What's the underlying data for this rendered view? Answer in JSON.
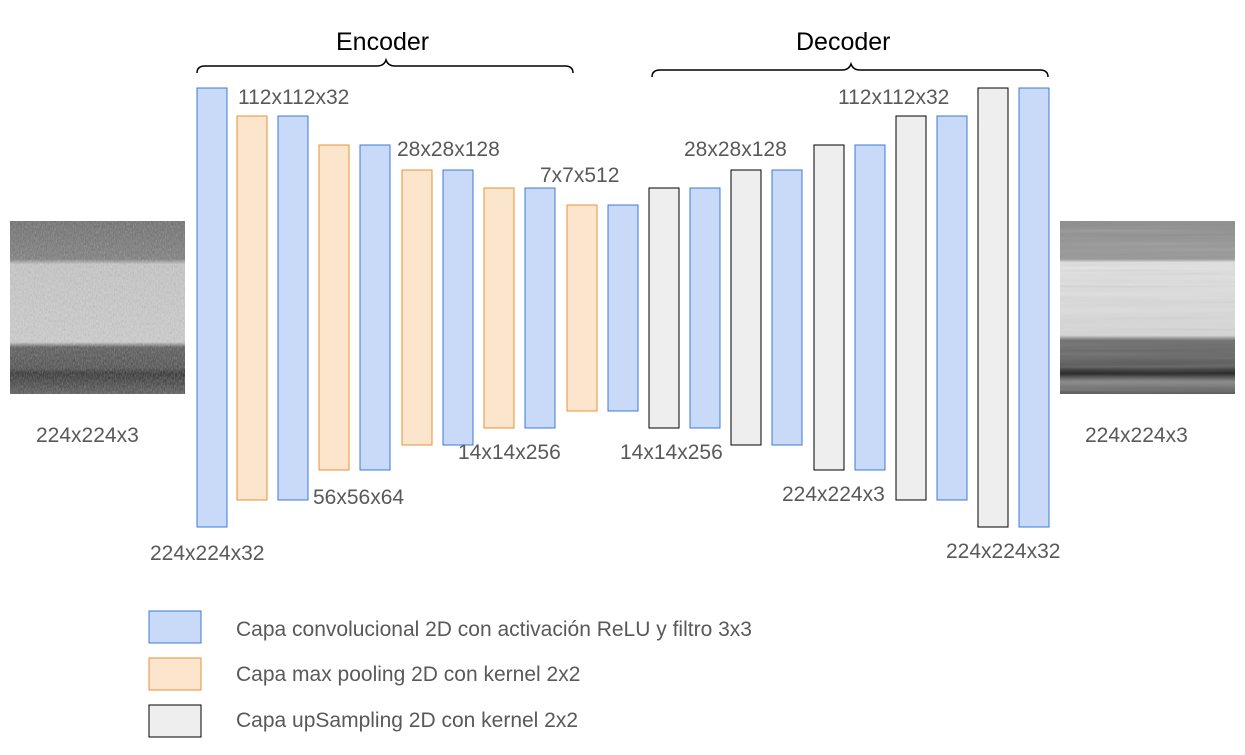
{
  "colors": {
    "conv_fill": "#c9daf8",
    "conv_stroke": "#3c78d8",
    "pool_fill": "#fce5cd",
    "pool_stroke": "#e69138",
    "up_fill": "#eeeeee",
    "up_stroke": "#000000"
  },
  "sections": {
    "encoder": "Encoder",
    "decoder": "Decoder"
  },
  "images": {
    "input_label": "224x224x3",
    "output_label": "224x224x3"
  },
  "dimension_labels": {
    "enc_224x224x32": "224x224x32",
    "enc_112x112x32": "112x112x32",
    "enc_56x56x64": "56x56x64",
    "enc_28x28x128": "28x28x128",
    "enc_14x14x256": "14x14x256",
    "bottleneck_7x7x512": "7x7x512",
    "dec_14x14x256": "14x14x256",
    "dec_28x28x128": "28x28x128",
    "dec_224x224x3": "224x224x3",
    "dec_112x112x32": "112x112x32",
    "dec_224x224x32": "224x224x32"
  },
  "layers": [
    {
      "type": "conv"
    },
    {
      "type": "pool"
    },
    {
      "type": "conv"
    },
    {
      "type": "pool"
    },
    {
      "type": "conv"
    },
    {
      "type": "pool"
    },
    {
      "type": "conv"
    },
    {
      "type": "pool"
    },
    {
      "type": "conv"
    },
    {
      "type": "pool"
    },
    {
      "type": "conv"
    },
    {
      "type": "up"
    },
    {
      "type": "conv"
    },
    {
      "type": "up"
    },
    {
      "type": "conv"
    },
    {
      "type": "up"
    },
    {
      "type": "conv"
    },
    {
      "type": "up"
    },
    {
      "type": "conv"
    },
    {
      "type": "up"
    },
    {
      "type": "conv"
    }
  ],
  "legend": {
    "conv": "Capa convolucional 2D con activación ReLU y filtro 3x3",
    "pool": "Capa max pooling 2D con kernel 2x2",
    "up": "Capa upSampling 2D con kernel 2x2"
  }
}
